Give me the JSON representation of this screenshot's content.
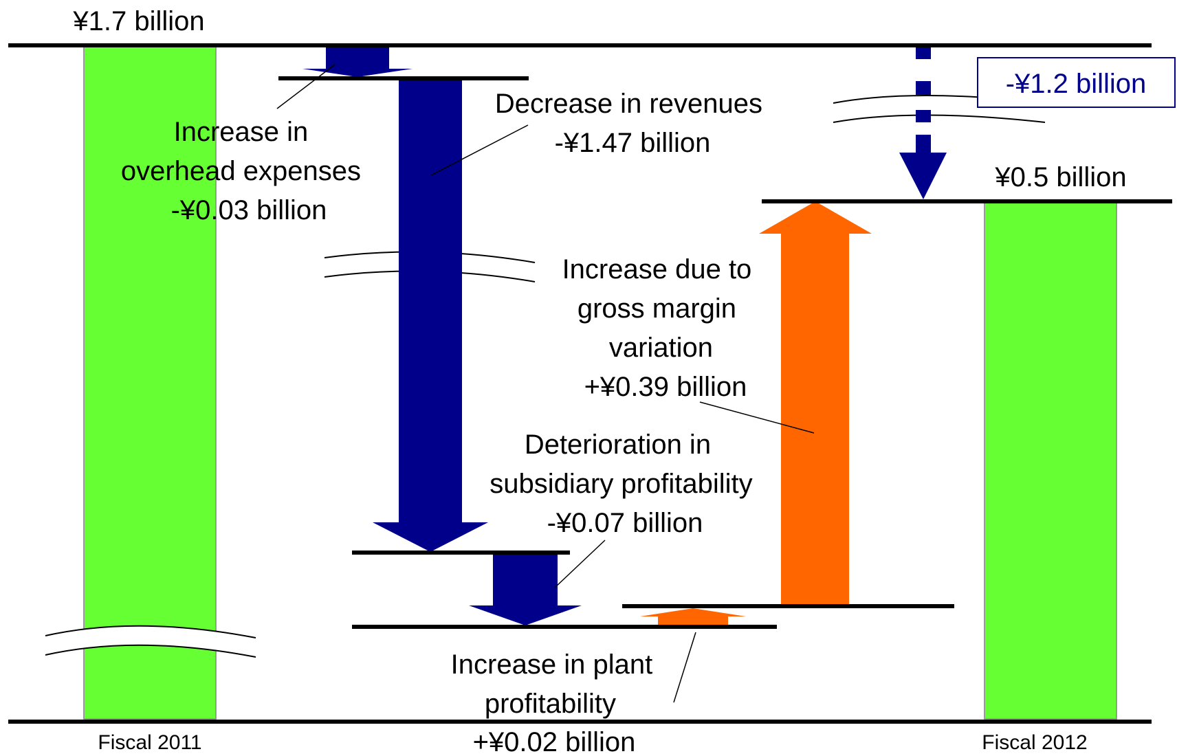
{
  "chart_data": {
    "type": "bar",
    "subtype": "waterfall",
    "categories": [
      "Fiscal 2011",
      "Fiscal 2012"
    ],
    "units": "billion yen",
    "start": {
      "category": "Fiscal 2011",
      "value": 1.7,
      "label": "¥1.7 billion"
    },
    "end": {
      "category": "Fiscal 2012",
      "value": 0.5,
      "label": "¥0.5 billion"
    },
    "net_change": {
      "value": -1.2,
      "label": "-¥1.2 billion"
    },
    "steps": [
      {
        "label_lines": [
          "Increase in",
          "overhead expenses",
          "-¥0.03 billion"
        ],
        "value": -0.03,
        "color": "#00008b"
      },
      {
        "label_lines": [
          "Decrease in revenues",
          "-¥1.47 billion"
        ],
        "value": -1.47,
        "color": "#00008b"
      },
      {
        "label_lines": [
          "Deterioration in",
          "subsidiary profitability",
          "-¥0.07 billion"
        ],
        "value": -0.07,
        "color": "#00008b"
      },
      {
        "label_lines": [
          "Increase in plant",
          "profitability",
          "+¥0.02 billion"
        ],
        "value": 0.02,
        "color": "#ff6600"
      },
      {
        "label_lines": [
          "Increase due to",
          "gross margin",
          "variation",
          "+¥0.39 billion"
        ],
        "value": 0.39,
        "color": "#ff6600"
      }
    ],
    "colors": {
      "total_bar": "#66ff33",
      "decrease": "#00008b",
      "increase": "#ff6600"
    },
    "axis_break": true,
    "grid": false,
    "legend": "none"
  }
}
